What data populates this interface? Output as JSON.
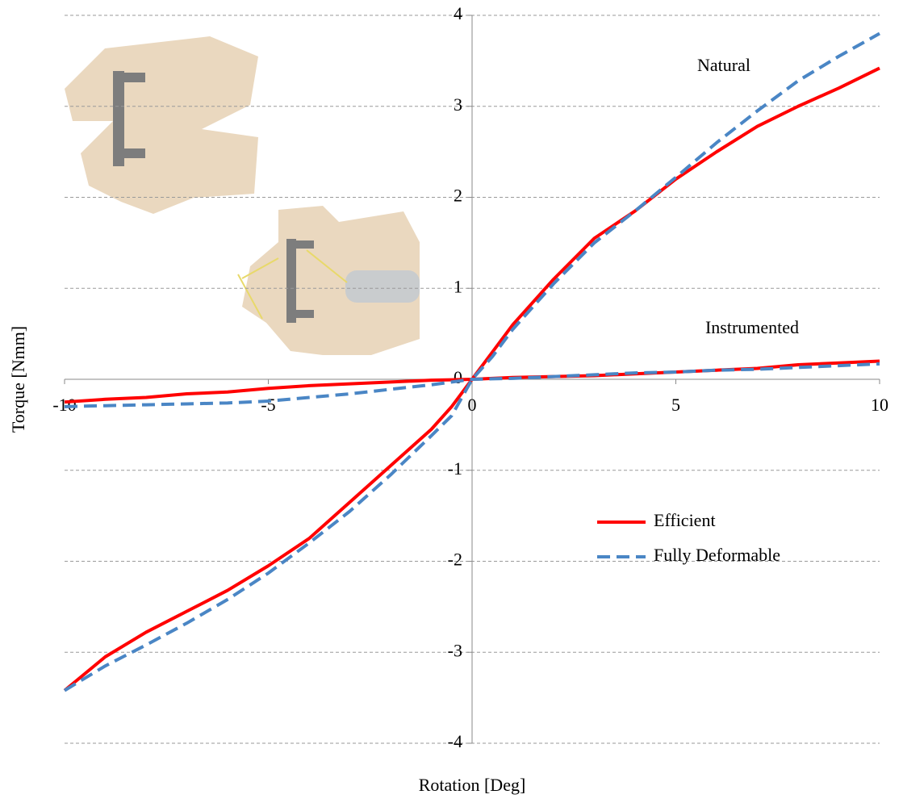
{
  "chart_data": {
    "type": "line",
    "x_label": "Rotation [Deg]",
    "y_label": "Torque [Nmm]",
    "x": [
      -10,
      -9,
      -8,
      -7,
      -6,
      -5,
      -4,
      -3,
      -2,
      -1,
      -0.5,
      0,
      0.5,
      1,
      2,
      3,
      4,
      5,
      6,
      7,
      8,
      9,
      10
    ],
    "xlim": [
      -10,
      10
    ],
    "xticks": [
      -10,
      -5,
      0,
      5,
      10
    ],
    "ylim": [
      -4,
      4
    ],
    "yticks": [
      -4,
      -3,
      -2,
      -1,
      0,
      1,
      2,
      3,
      4
    ],
    "grid": true,
    "legend": "lower right",
    "curve_labels": {
      "natural": "Natural",
      "instrumented": "Instrumented"
    },
    "series": [
      {
        "name": "Efficient",
        "color": "#ff0000",
        "dashed": false,
        "natural": [
          -3.42,
          -3.05,
          -2.78,
          -2.55,
          -2.32,
          -2.05,
          -1.75,
          -1.35,
          -0.95,
          -0.55,
          -0.3,
          0,
          0.3,
          0.6,
          1.1,
          1.55,
          1.85,
          2.2,
          2.5,
          2.78,
          3.0,
          3.2,
          3.42
        ],
        "instrumented": [
          -0.25,
          -0.22,
          -0.2,
          -0.16,
          -0.14,
          -0.1,
          -0.07,
          -0.05,
          -0.03,
          -0.01,
          -0.005,
          0,
          0.01,
          0.02,
          0.03,
          0.04,
          0.06,
          0.08,
          0.1,
          0.12,
          0.16,
          0.18,
          0.2
        ]
      },
      {
        "name": "Fully Deformable",
        "color": "#4a86c5",
        "dashed": true,
        "natural": [
          -3.42,
          -3.15,
          -2.92,
          -2.68,
          -2.42,
          -2.13,
          -1.8,
          -1.45,
          -1.05,
          -0.62,
          -0.4,
          0,
          0.25,
          0.55,
          1.05,
          1.5,
          1.85,
          2.22,
          2.6,
          2.95,
          3.28,
          3.55,
          3.8
        ],
        "instrumented": [
          -0.3,
          -0.29,
          -0.28,
          -0.27,
          -0.26,
          -0.24,
          -0.2,
          -0.16,
          -0.11,
          -0.06,
          -0.03,
          0,
          0.005,
          0.01,
          0.03,
          0.05,
          0.07,
          0.08,
          0.1,
          0.11,
          0.13,
          0.15,
          0.17
        ]
      }
    ]
  }
}
